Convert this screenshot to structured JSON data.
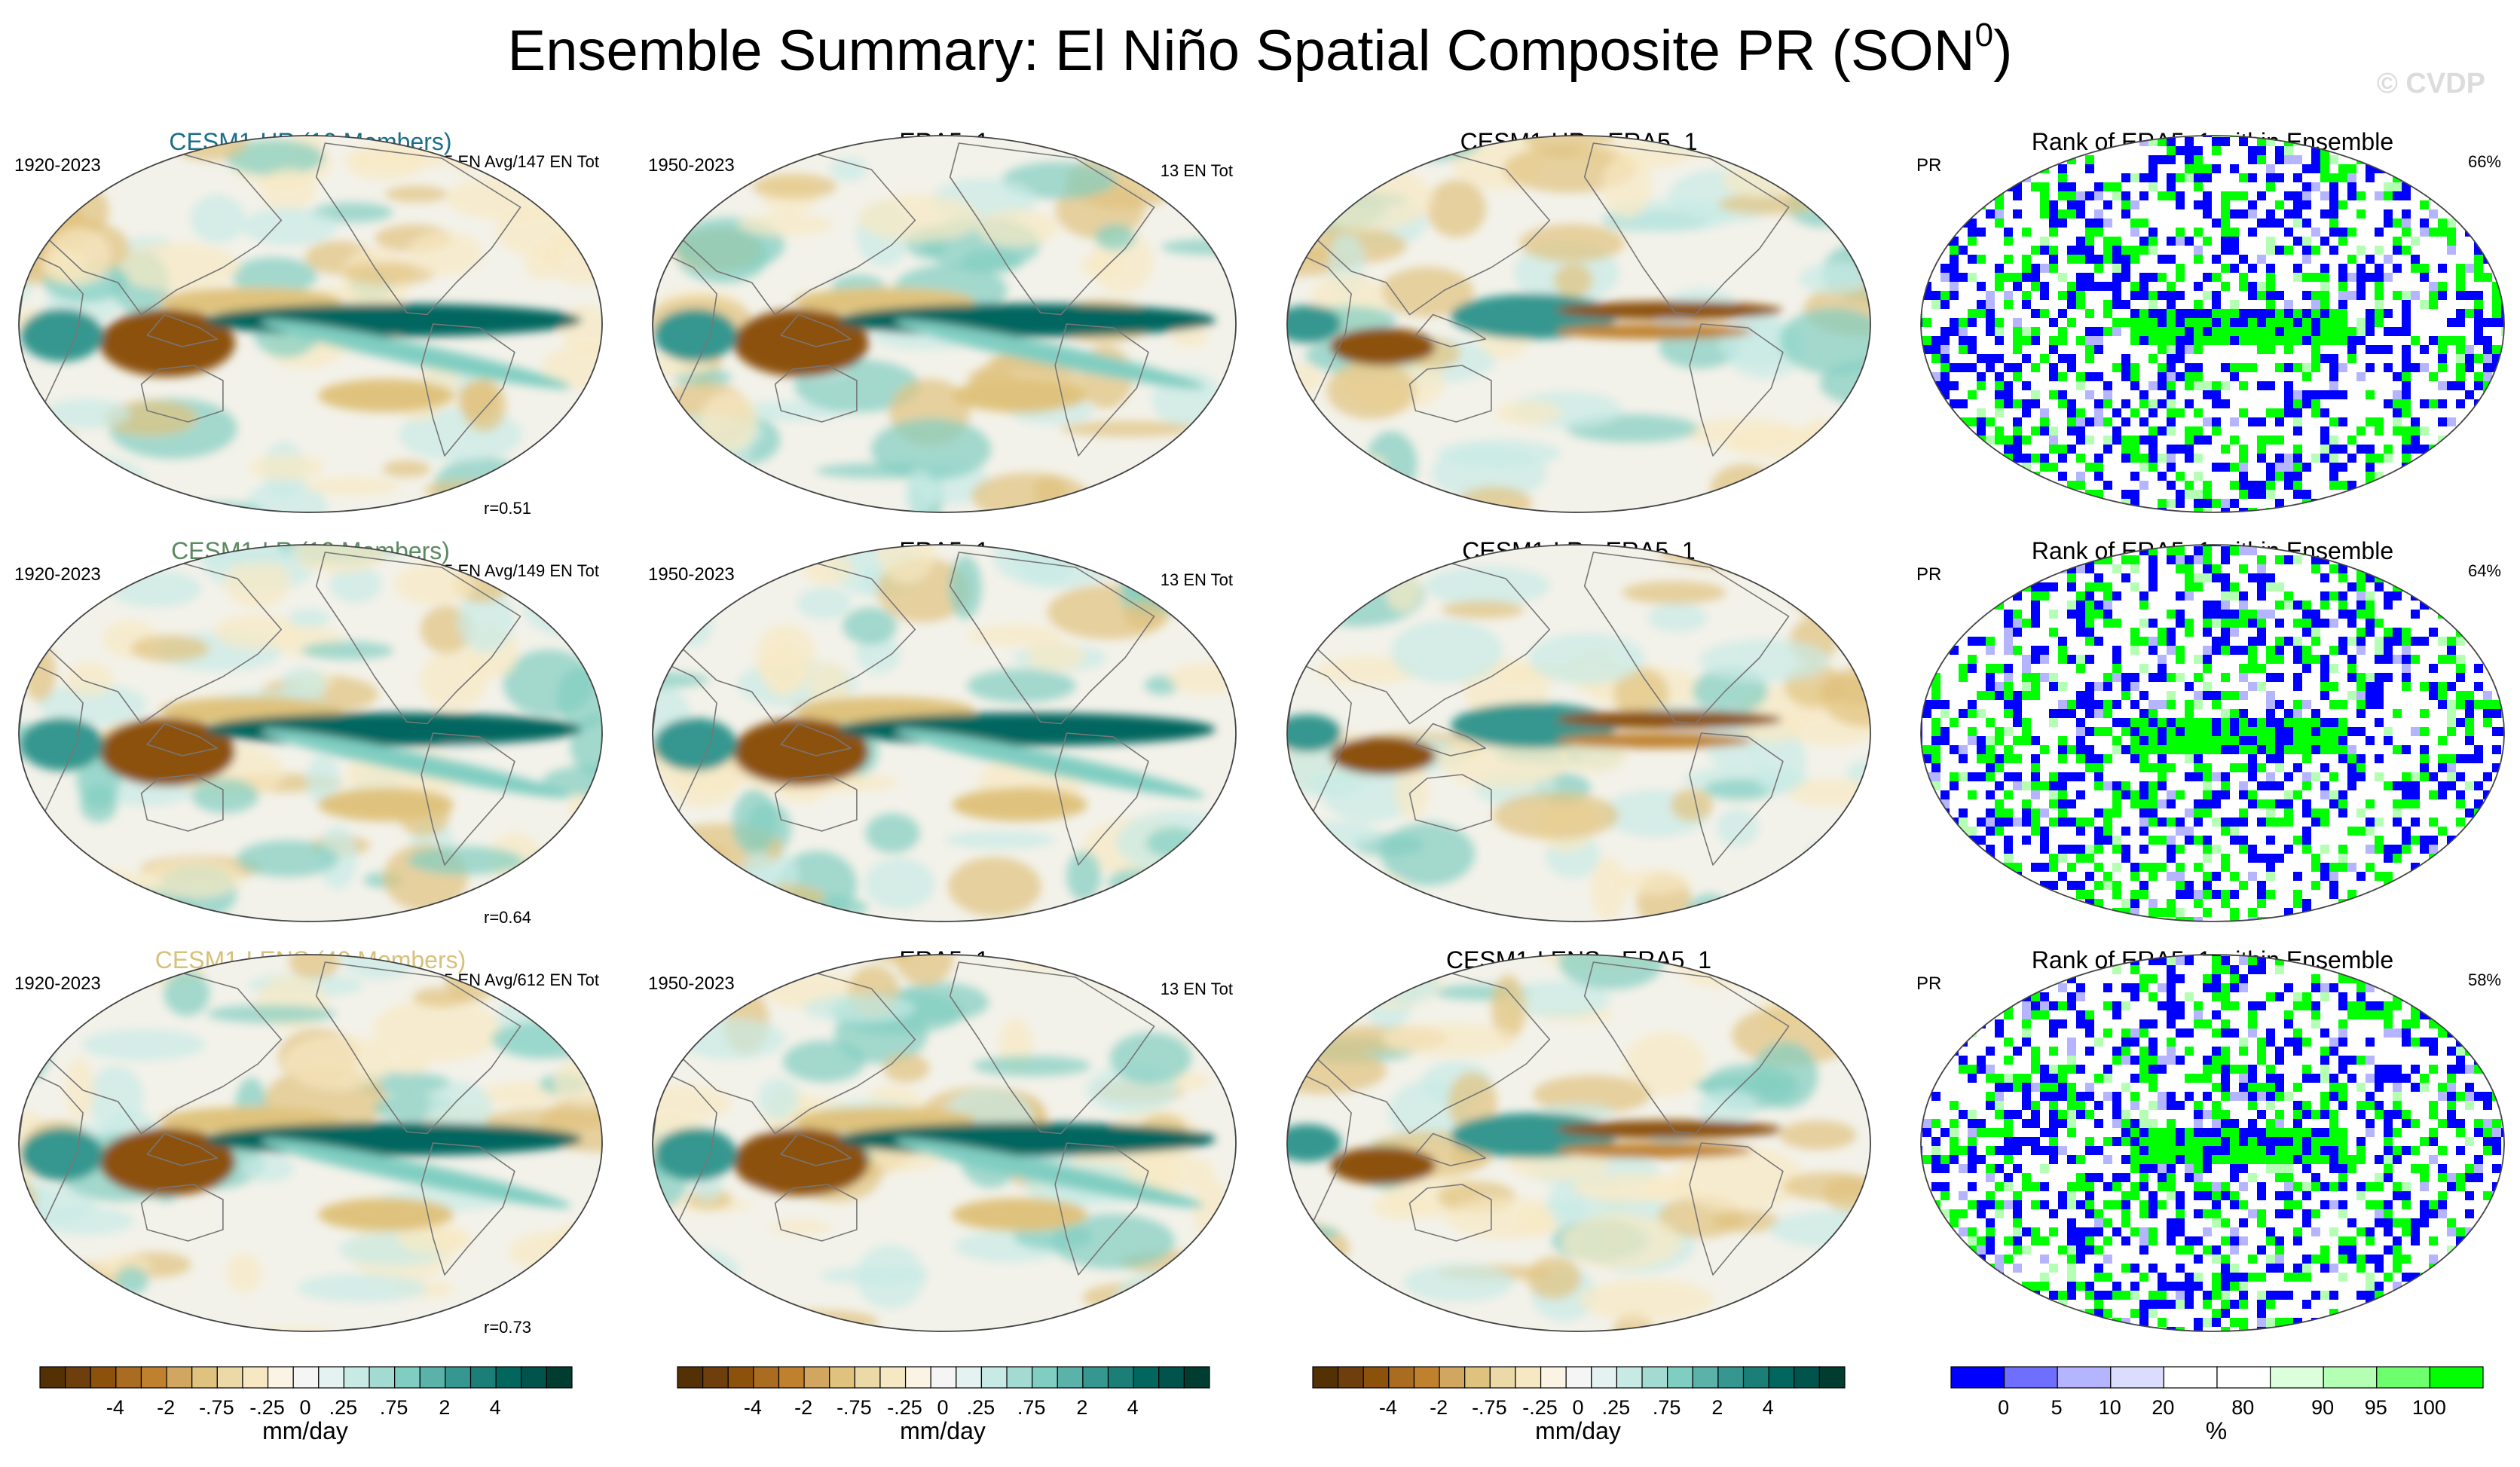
{
  "figure": {
    "title_main": "Ensemble Summary: El Niño Spatial Composite PR (SON",
    "title_sup": "0",
    "title_end": ")",
    "watermark": "© CVDP"
  },
  "panels": [
    {
      "id": "r1c1",
      "title": "CESM1-HR (10 Members)",
      "title_color": "#1c6f88",
      "left_label": "1920-2023",
      "right_label": "15 EN Avg/147 EN Tot",
      "bottom_label": "r=0.51",
      "kind": "model"
    },
    {
      "id": "r1c2",
      "title": "ERA5_1",
      "title_color": "#000000",
      "left_label": "1950-2023",
      "right_label": "13 EN Tot",
      "bottom_label": "",
      "kind": "obs"
    },
    {
      "id": "r1c3",
      "title": "CESM1-HR - ERA5_1",
      "title_color": "#000000",
      "left_label": "",
      "right_label": "",
      "bottom_label": "",
      "kind": "diff"
    },
    {
      "id": "r1c4",
      "title": "Rank of ERA5_1 within Ensemble",
      "title_color": "#000000",
      "left_label": "PR",
      "right_label": "66%",
      "bottom_label": "",
      "kind": "rank"
    },
    {
      "id": "r2c1",
      "title": "CESM1-LR (10 Members)",
      "title_color": "#5b8a60",
      "left_label": "1920-2023",
      "right_label": "15 EN Avg/149 EN Tot",
      "bottom_label": "r=0.64",
      "kind": "model"
    },
    {
      "id": "r2c2",
      "title": "ERA5_1",
      "title_color": "#000000",
      "left_label": "1950-2023",
      "right_label": "13 EN Tot",
      "bottom_label": "",
      "kind": "obs"
    },
    {
      "id": "r2c3",
      "title": "CESM1-LR - ERA5_1",
      "title_color": "#000000",
      "left_label": "",
      "right_label": "",
      "bottom_label": "",
      "kind": "diff"
    },
    {
      "id": "r2c4",
      "title": "Rank of ERA5_1 within Ensemble",
      "title_color": "#000000",
      "left_label": "PR",
      "right_label": "64%",
      "bottom_label": "",
      "kind": "rank"
    },
    {
      "id": "r3c1",
      "title": "CESM1-LENS (40 Members)",
      "title_color": "#d8c07a",
      "left_label": "1920-2023",
      "right_label": "15 EN Avg/612 EN Tot",
      "bottom_label": "r=0.73",
      "kind": "model"
    },
    {
      "id": "r3c2",
      "title": "ERA5_1",
      "title_color": "#000000",
      "left_label": "1950-2023",
      "right_label": "13 EN Tot",
      "bottom_label": "",
      "kind": "obs"
    },
    {
      "id": "r3c3",
      "title": "CESM1-LENS - ERA5_1",
      "title_color": "#000000",
      "left_label": "",
      "right_label": "",
      "bottom_label": "",
      "kind": "diff"
    },
    {
      "id": "r3c4",
      "title": "Rank of ERA5_1 within Ensemble",
      "title_color": "#000000",
      "left_label": "PR",
      "right_label": "58%",
      "bottom_label": "",
      "kind": "rank"
    }
  ],
  "colorbars": {
    "brbg": {
      "colors": [
        "#543005",
        "#6e3f0d",
        "#8c510a",
        "#a96c20",
        "#bf812d",
        "#d1a660",
        "#dfc27d",
        "#ecd9a8",
        "#f6e8c3",
        "#fbf4e4",
        "#f5f5f5",
        "#e4f3f1",
        "#c7eae5",
        "#a3dad1",
        "#80cdc1",
        "#5bb2a8",
        "#35978f",
        "#1b7f77",
        "#01665e",
        "#01544c",
        "#003c30"
      ],
      "ticks": [
        "-4",
        "-2",
        "-.75",
        "-.25",
        "0",
        ".25",
        ".75",
        "2",
        "4"
      ],
      "unit": "mm/day"
    },
    "rank": {
      "colors": [
        "#0000ff",
        "#6e6eff",
        "#b4b4ff",
        "#dcdcff",
        "#ffffff",
        "#ffffff",
        "#dcffdc",
        "#b4ffb4",
        "#6eff6e",
        "#00ff00"
      ],
      "ticks": [
        "0",
        "5",
        "10",
        "20",
        "80",
        "90",
        "95",
        "100"
      ],
      "unit": "%"
    }
  },
  "chart_data": [
    {
      "type": "heatmap",
      "title": "CESM1-HR (10 Members)",
      "subtitle": "15 EN Avg/147 EN Tot",
      "period": "1920-2023",
      "pattern_correlation": 0.51,
      "units": "mm/day",
      "levels": [
        -4,
        -2,
        -0.75,
        -0.25,
        0,
        0.25,
        0.75,
        2,
        4
      ]
    },
    {
      "type": "heatmap",
      "title": "ERA5_1",
      "subtitle": "13 EN Tot",
      "period": "1950-2023",
      "units": "mm/day"
    },
    {
      "type": "heatmap",
      "title": "CESM1-HR - ERA5_1",
      "units": "mm/day"
    },
    {
      "type": "heatmap",
      "title": "Rank of ERA5_1 within Ensemble",
      "variable": "PR",
      "area_within_10_90": "66%",
      "units": "%",
      "levels": [
        0,
        5,
        10,
        20,
        80,
        90,
        95,
        100
      ]
    },
    {
      "type": "heatmap",
      "title": "CESM1-LR (10 Members)",
      "subtitle": "15 EN Avg/149 EN Tot",
      "period": "1920-2023",
      "pattern_correlation": 0.64,
      "units": "mm/day"
    },
    {
      "type": "heatmap",
      "title": "ERA5_1",
      "subtitle": "13 EN Tot",
      "period": "1950-2023",
      "units": "mm/day"
    },
    {
      "type": "heatmap",
      "title": "CESM1-LR - ERA5_1",
      "units": "mm/day"
    },
    {
      "type": "heatmap",
      "title": "Rank of ERA5_1 within Ensemble",
      "variable": "PR",
      "area_within_10_90": "64%",
      "units": "%"
    },
    {
      "type": "heatmap",
      "title": "CESM1-LENS (40 Members)",
      "subtitle": "15 EN Avg/612 EN Tot",
      "period": "1920-2023",
      "pattern_correlation": 0.73,
      "units": "mm/day"
    },
    {
      "type": "heatmap",
      "title": "ERA5_1",
      "subtitle": "13 EN Tot",
      "period": "1950-2023",
      "units": "mm/day"
    },
    {
      "type": "heatmap",
      "title": "CESM1-LENS - ERA5_1",
      "units": "mm/day"
    },
    {
      "type": "heatmap",
      "title": "Rank of ERA5_1 within Ensemble",
      "variable": "PR",
      "area_within_10_90": "58%",
      "units": "%"
    }
  ]
}
